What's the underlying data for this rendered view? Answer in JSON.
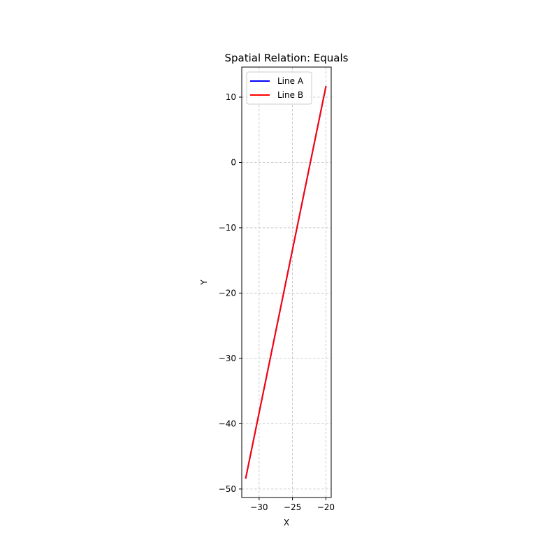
{
  "chart_data": {
    "type": "line",
    "title": "Spatial Relation: Equals",
    "xlabel": "X",
    "ylabel": "Y",
    "xlim": [
      -32.6,
      -19.2
    ],
    "ylim": [
      -51.3,
      14.6
    ],
    "xticks": [
      -30,
      -25,
      -20
    ],
    "yticks": [
      10,
      0,
      -10,
      -20,
      -30,
      -40,
      -50
    ],
    "grid": true,
    "legend_position": "upper-left",
    "series": [
      {
        "name": "Line A",
        "color": "#0000ff",
        "x": [
          -32.0,
          -20.0
        ],
        "y": [
          -48.3,
          11.6
        ]
      },
      {
        "name": "Line B",
        "color": "#ff0000",
        "x": [
          -32.0,
          -20.0
        ],
        "y": [
          -48.3,
          11.6
        ]
      }
    ]
  }
}
